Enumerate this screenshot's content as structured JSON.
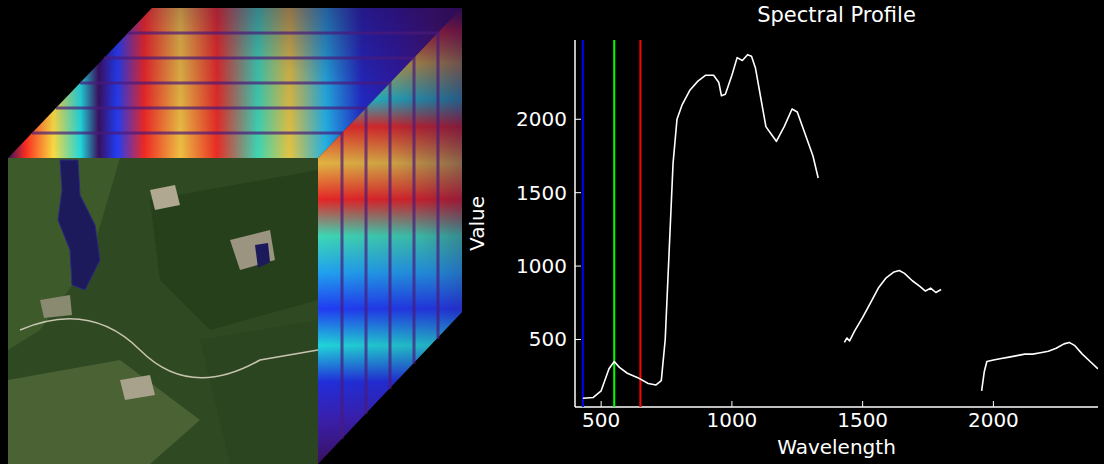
{
  "chart_data": {
    "type": "line",
    "title": "Spectral Profile",
    "x_label": "Wavelength",
    "y_label": "Value",
    "color": "#ffffff",
    "grid": false,
    "xlim": [
      400,
      2400
    ],
    "xticks": [
      500,
      1000,
      1500,
      2000
    ],
    "ylim": [
      40,
      2540
    ],
    "yticks": [
      500,
      1000,
      1500,
      2000
    ],
    "band_lines": {
      "x": [
        430,
        550,
        650
      ],
      "colors": [
        "#0000ff",
        "#00ff00",
        "#ff0000"
      ]
    },
    "x": [
      430,
      470,
      500,
      530,
      550,
      570,
      600,
      640,
      680,
      710,
      730,
      745,
      760,
      775,
      790,
      810,
      840,
      870,
      900,
      930,
      950,
      960,
      975,
      1000,
      1020,
      1040,
      1060,
      1075,
      1090,
      1110,
      1130,
      1150,
      1170,
      1200,
      1230,
      1250,
      1280,
      1310,
      1330,
      1380,
      1430,
      1440,
      1450,
      1470,
      1500,
      1530,
      1560,
      1590,
      1620,
      1640,
      1660,
      1690,
      1720,
      1740,
      1760,
      1780,
      1800,
      1880,
      1955,
      1965,
      1975,
      2000,
      2030,
      2060,
      2090,
      2120,
      2150,
      2180,
      2210,
      2240,
      2270,
      2290,
      2310,
      2340,
      2370,
      2400
    ],
    "values": [
      100,
      105,
      150,
      300,
      350,
      310,
      270,
      240,
      200,
      190,
      220,
      500,
      1100,
      1700,
      2000,
      2100,
      2200,
      2260,
      2300,
      2300,
      2250,
      2160,
      2170,
      2300,
      2420,
      2400,
      2440,
      2430,
      2350,
      2150,
      1950,
      1900,
      1850,
      1950,
      2070,
      2050,
      1900,
      1750,
      1600,
      null,
      480,
      510,
      490,
      560,
      650,
      750,
      850,
      920,
      960,
      970,
      950,
      900,
      860,
      830,
      850,
      820,
      840,
      null,
      150,
      280,
      350,
      360,
      370,
      380,
      390,
      400,
      400,
      410,
      420,
      440,
      470,
      480,
      460,
      400,
      350,
      300
    ]
  }
}
